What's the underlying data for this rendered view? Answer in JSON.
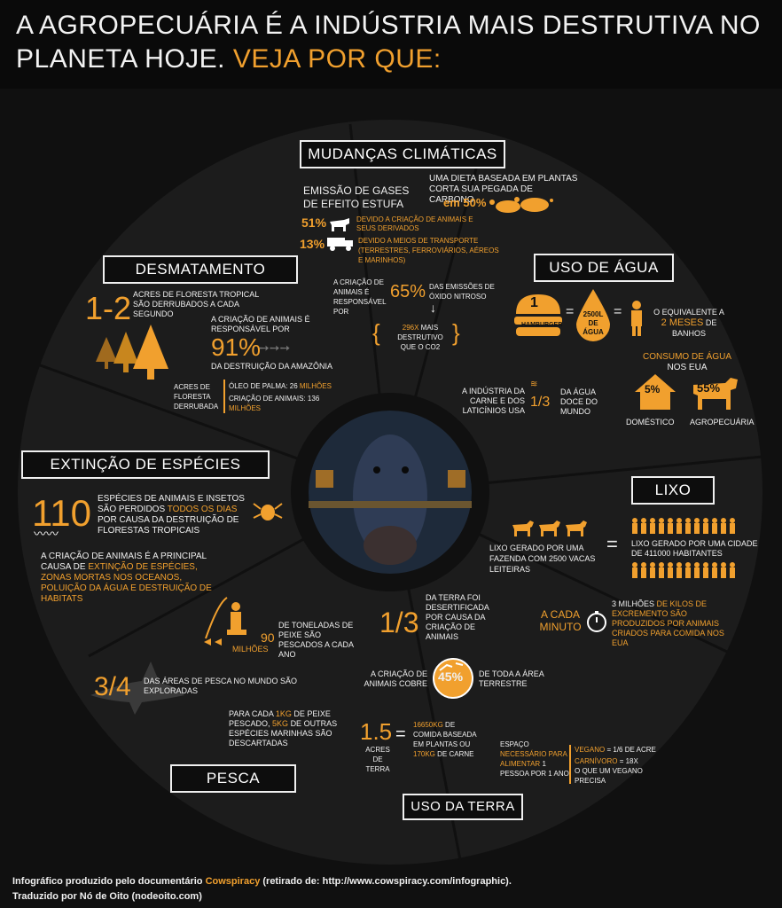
{
  "header": {
    "title_part1": "A AGROPECUÁRIA É A INDÚSTRIA MAIS DESTRUTIVA NO",
    "title_part2": "PLANETA HOJE.",
    "title_accent": "VEJA POR QUE:"
  },
  "colors": {
    "accent": "#f1a02e",
    "background": "#101010",
    "circle": "#1c1c1c",
    "text": "#f0f0f0"
  },
  "climate": {
    "heading": "MUDANÇAS CLIMÁTICAS",
    "emissions_label": "EMISSÃO DE GASES DE EFEITO ESTUFA",
    "diet_text": "UMA DIETA BASEADA EM PLANTAS CORTA SUA PEGADA DE CARBONO",
    "diet_pct": "em 50%",
    "pct1": "51%",
    "pct1_text": "DEVIDO A CRIAÇÃO DE ANIMAIS E SEUS DERIVADOS",
    "pct2": "13%",
    "pct2_text": "DEVIDO A MEIOS DE TRANSPORTE (TERRESTRES, FERROVIÁRIOS, AÉREOS E MARINHOS)",
    "methane_intro": "A CRIAÇÃO DE ANIMAIS É RESPONSÁVEL POR",
    "methane_pct": "65%",
    "methane_text": "DAS EMISSÕES DE ÓXIDO NITROSO",
    "co2_text1": "296X",
    "co2_text2": "MAIS DESTRUTIVO QUE O CO2"
  },
  "deforestation": {
    "heading": "DESMATAMENTO",
    "range": "1-2",
    "range_text": "ACRES DE FLORESTA TROPICAL SÃO DERRUBADOS A CADA SEGUNDO",
    "resp_text": "A CRIAÇÃO DE ANIMAIS É RESPONSÁVEL POR",
    "resp_pct": "91%",
    "amazon_text": "DA DESTRUIÇÃO DA AMAZÔNIA",
    "acres_label": "ACRES DE FLORESTA DERRUBADA",
    "palm_label": "ÓLEO DE PALMA:",
    "palm_value": "26",
    "palm_unit": "MILHÕES",
    "animals_label": "CRIAÇÃO DE ANIMAIS:",
    "animals_value": "136",
    "animals_unit": "MILHÕES"
  },
  "water": {
    "heading": "USO DE ÁGUA",
    "burger_num": "1",
    "burger_label": "HAMBURGER",
    "drop_value": "2500L DE ÁGUA",
    "equiv_text": "O EQUIVALENTE A",
    "equiv_value": "2 MESES",
    "equiv_suffix": "DE BANHOS",
    "consumption_title": "CONSUMO DE ÁGUA",
    "consumption_sub": "NOS EUA",
    "domestic_pct": "5%",
    "domestic_label": "DOMÉSTICO",
    "agro_pct": "55%",
    "agro_label": "AGROPECUÁRIA",
    "industry_text": "A INDÚSTRIA DA CARNE E DOS LATICÍNIOS USA",
    "fraction": "1/3",
    "fresh_text": "DA ÁGUA DOCE DO MUNDO"
  },
  "species": {
    "heading": "EXTINÇÃO DE ESPÉCIES",
    "number": "110",
    "text_a": "ESPÉCIES DE ANIMAIS E INSETOS SÃO PERDIDOS",
    "text_accent": "TODOS OS DIAS",
    "text_b": "POR CAUSA DA DESTRUIÇÃO DE FLORESTAS TROPICAIS",
    "cause_intro": "A CRIAÇÃO DE ANIMAIS É A PRINCIPAL CAUSA DE",
    "cause_list": "EXTINÇÃO DE ESPÉCIES, ZONAS MORTAS NOS OCEANOS, POLUIÇÃO DA ÁGUA E DESTRUIÇÃO DE HABITATS"
  },
  "waste": {
    "heading": "LIXO",
    "farm_text": "LIXO GERADO POR UMA FAZENDA COM 2500 VACAS LEITEIRAS",
    "city_text": "LIXO GERADO POR UMA CIDADE DE 411000 HABITANTES",
    "minute_label": "A CADA MINUTO",
    "minute_text_a": "3 MILHÕES",
    "minute_text_b": "DE KILOS DE EXCREMENTO SÃO PRODUZIDOS POR ANIMAIS CRIADOS PARA COMIDA NOS EUA"
  },
  "fishing": {
    "heading": "PESCA",
    "tons": "90",
    "tons_unit": "MILHÕES",
    "tons_text": "DE TONELADAS DE PEIXE SÃO PESCADOS A CADA ANO",
    "fraction": "3/4",
    "fraction_text": "DAS ÁREAS DE PESCA NO MUNDO SÃO EXPLORADAS",
    "bycatch_a": "PARA CADA",
    "bycatch_kg": "1KG",
    "bycatch_b": "DE PEIXE PESCADO,",
    "bycatch_kg2": "5KG",
    "bycatch_c": "DE OUTRAS ESPÉCIES MARINHAS SÃO DESCARTADAS"
  },
  "land": {
    "heading": "USO DA TERRA",
    "fraction": "1/3",
    "fraction_text": "DA TERRA FOI DESERTIFICADA POR CAUSA DA CRIAÇÃO DE ANIMAIS",
    "cover_text": "A CRIAÇÃO DE ANIMAIS COBRE",
    "cover_pct": "45%",
    "cover_suffix": "DE TODA A ÁREA TERRESTRE",
    "acres_num": "1.5",
    "acres_label": "ACRES DE TERRA",
    "equals": "=",
    "food_kg1": "16650KG",
    "food_text_a": "DE COMIDA BASEADA EM PLANTAS OU",
    "food_kg2": "170KG",
    "food_text_b": "DE CARNE",
    "space_a": "ESPAÇO",
    "space_accent": "NECESSÁRIO PARA ALIMENTAR",
    "space_b": "1 PESSOA",
    "space_c": "POR 1 ANO",
    "vegan": "VEGANO",
    "vegan_text": "= 1/6 DE ACRE",
    "carnivore": "CARNÍVORO",
    "carnivore_text": "= 18X O QUE UM VEGANO PRECISA"
  },
  "footer": {
    "line1_a": "Infográfico produzido pelo documentário",
    "line1_accent": "Cowspiracy",
    "line1_b": "(retirado de: http://www.cowspiracy.com/infographic).",
    "line2": "Traduzido por Nó de Oito (nodeoito.com)"
  }
}
